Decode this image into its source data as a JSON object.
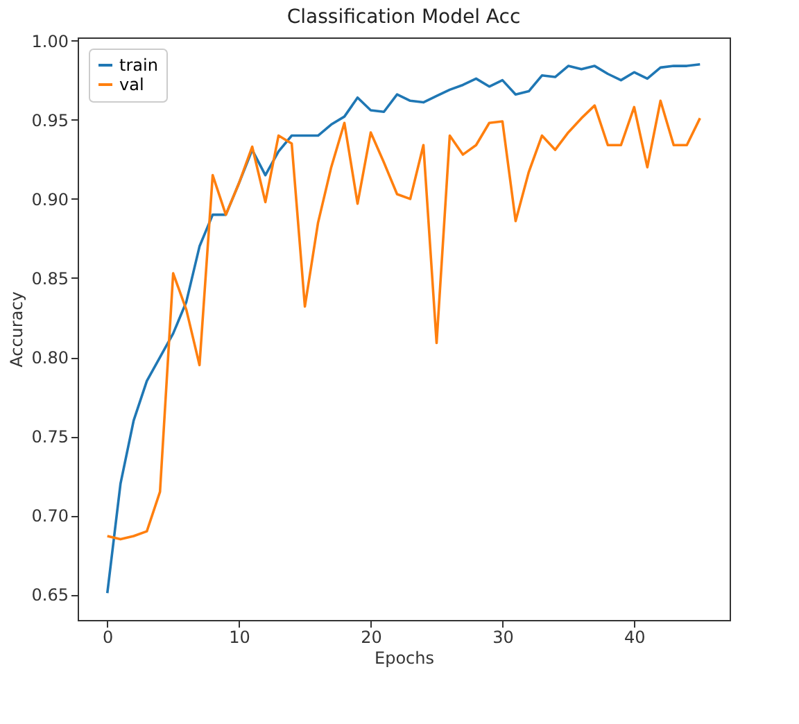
{
  "chart_data": {
    "type": "line",
    "title": "Classification Model Acc",
    "xlabel": "Epochs",
    "ylabel": "Accuracy",
    "x": [
      0,
      1,
      2,
      3,
      4,
      5,
      6,
      7,
      8,
      9,
      10,
      11,
      12,
      13,
      14,
      15,
      16,
      17,
      18,
      19,
      20,
      21,
      22,
      23,
      24,
      25,
      26,
      27,
      28,
      29,
      30,
      31,
      32,
      33,
      34,
      35,
      36,
      37,
      38,
      39,
      40,
      41,
      42,
      43,
      44,
      45
    ],
    "series": [
      {
        "name": "train",
        "color": "#1f77b4",
        "values": [
          0.651,
          0.72,
          0.76,
          0.785,
          0.8,
          0.815,
          0.835,
          0.87,
          0.89,
          0.89,
          0.91,
          0.931,
          0.915,
          0.93,
          0.94,
          0.94,
          0.94,
          0.947,
          0.952,
          0.964,
          0.956,
          0.955,
          0.966,
          0.962,
          0.961,
          0.965,
          0.969,
          0.972,
          0.976,
          0.971,
          0.975,
          0.966,
          0.968,
          0.978,
          0.977,
          0.984,
          0.982,
          0.984,
          0.979,
          0.975,
          0.98,
          0.976,
          0.983,
          0.984,
          0.984,
          0.985
        ]
      },
      {
        "name": "val",
        "color": "#ff7f0e",
        "values": [
          0.687,
          0.685,
          0.687,
          0.69,
          0.715,
          0.853,
          0.83,
          0.795,
          0.915,
          0.89,
          0.91,
          0.933,
          0.898,
          0.94,
          0.935,
          0.832,
          0.885,
          0.92,
          0.948,
          0.897,
          0.942,
          0.923,
          0.903,
          0.9,
          0.934,
          0.809,
          0.94,
          0.928,
          0.934,
          0.948,
          0.949,
          0.886,
          0.917,
          0.94,
          0.931,
          0.942,
          0.951,
          0.959,
          0.934,
          0.934,
          0.958,
          0.92,
          0.962,
          0.934,
          0.934,
          0.951
        ]
      }
    ],
    "xlim": [
      -2.25,
      47.25
    ],
    "ylim": [
      0.634,
      1.002
    ],
    "xticks": [
      0,
      10,
      20,
      30,
      40
    ],
    "yticks": [
      {
        "value": 0.65,
        "label": "0.65"
      },
      {
        "value": 0.7,
        "label": "0.70"
      },
      {
        "value": 0.75,
        "label": "0.75"
      },
      {
        "value": 0.8,
        "label": "0.80"
      },
      {
        "value": 0.85,
        "label": "0.85"
      },
      {
        "value": 0.9,
        "label": "0.90"
      },
      {
        "value": 0.95,
        "label": "0.95"
      },
      {
        "value": 1.0,
        "label": "1.00"
      }
    ],
    "legend": "top left",
    "grid": false,
    "marker": "none",
    "line_style": "solid"
  }
}
